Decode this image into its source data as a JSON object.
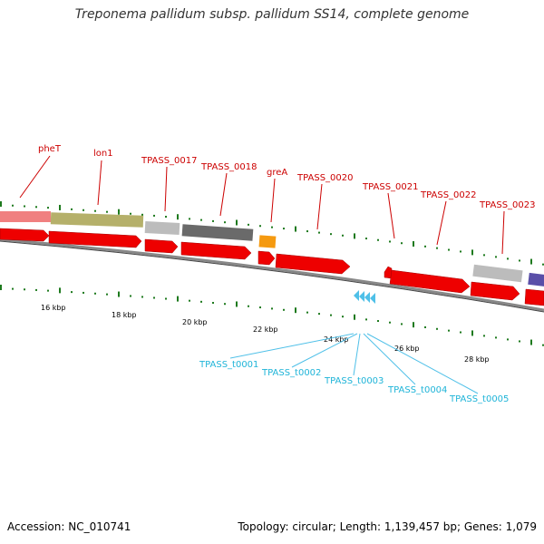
{
  "title": "Treponema pallidum subsp. pallidum SS14, complete genome",
  "footer": {
    "accession": "Accession: NC_010741",
    "stats": "Topology: circular; Length: 1,139,457 bp; Genes: 1,079"
  },
  "colors": {
    "gene_label": "#cc0000",
    "trna_label": "#1fb4d8",
    "cds": "#ee0000",
    "tick": "#1e7a1e",
    "backbone": "#888888"
  },
  "genes": [
    {
      "label": "pheT",
      "color": "#f08080"
    },
    {
      "label": "lon1",
      "color": "#b5b06a"
    },
    {
      "label": "TPASS_0017",
      "color": "#bcbcbc"
    },
    {
      "label": "TPASS_0018",
      "color": "#6a6a6a"
    },
    {
      "label": "greA",
      "color": "#f59a10"
    },
    {
      "label": "TPASS_0020",
      "color": "#ee0000"
    },
    {
      "label": "TPASS_0021",
      "color": "#ee0000"
    },
    {
      "label": "TPASS_0022",
      "color": "#ee0000"
    },
    {
      "label": "TPASS_0023",
      "color": "#bcbcbc"
    },
    {
      "label": "",
      "color": "#5a4fa8"
    }
  ],
  "trnas": [
    "TPASS_t0001",
    "TPASS_t0002",
    "TPASS_t0003",
    "TPASS_t0004",
    "TPASS_t0005"
  ],
  "kbp_labels": [
    "16 kbp",
    "18 kbp",
    "20 kbp",
    "22 kbp",
    "24 kbp",
    "26 kbp",
    "28 kbp"
  ]
}
